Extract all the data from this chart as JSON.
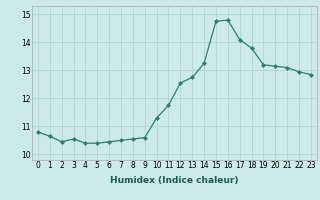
{
  "x": [
    0,
    1,
    2,
    3,
    4,
    5,
    6,
    7,
    8,
    9,
    10,
    11,
    12,
    13,
    14,
    15,
    16,
    17,
    18,
    19,
    20,
    21,
    22,
    23
  ],
  "y": [
    10.8,
    10.65,
    10.45,
    10.55,
    10.4,
    10.4,
    10.45,
    10.5,
    10.55,
    10.6,
    11.3,
    11.75,
    12.55,
    12.75,
    13.25,
    14.75,
    14.8,
    14.1,
    13.8,
    13.2,
    13.15,
    13.1,
    12.95,
    12.85
  ],
  "line_color": "#2e7d6e",
  "marker": "D",
  "marker_size": 2.0,
  "bg_color": "#cceae7",
  "grid_color": "#b0d5d0",
  "xlabel": "Humidex (Indice chaleur)",
  "xlim": [
    -0.5,
    23.5
  ],
  "ylim": [
    9.8,
    15.3
  ],
  "yticks": [
    10,
    11,
    12,
    13,
    14,
    15
  ],
  "xticks": [
    0,
    1,
    2,
    3,
    4,
    5,
    6,
    7,
    8,
    9,
    10,
    11,
    12,
    13,
    14,
    15,
    16,
    17,
    18,
    19,
    20,
    21,
    22,
    23
  ],
  "tick_fontsize": 5.5,
  "xlabel_fontsize": 6.5
}
